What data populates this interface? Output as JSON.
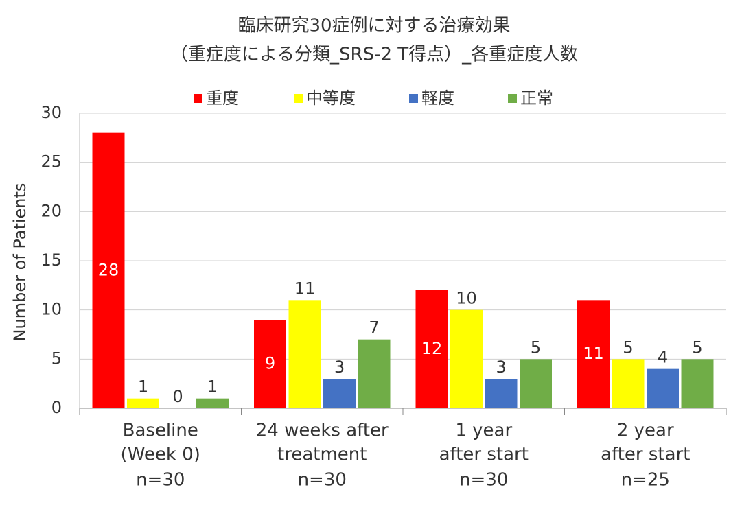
{
  "chart_data": {
    "type": "bar",
    "title": [
      "臨床研究30症例に対する治療効果",
      "（重症度による分類_SRS-2 T得点）_各重症度人数"
    ],
    "y_label": "Number of Patients",
    "categories": [
      [
        "Baseline",
        "(Week 0)",
        "n=30"
      ],
      [
        "24 weeks after",
        "treatment",
        "n=30"
      ],
      [
        "1 year",
        "after start",
        "n=30"
      ],
      [
        "2 year",
        "after start",
        "n=25"
      ]
    ],
    "series": [
      {
        "name": "重度",
        "color": "#ff0000",
        "values": [
          28,
          9,
          12,
          11
        ],
        "label_position": "center",
        "label_color": "#ffffff"
      },
      {
        "name": "中等度",
        "color": "#ffff00",
        "values": [
          1,
          11,
          10,
          5
        ],
        "label_position": "outside_end",
        "label_color": "#333333"
      },
      {
        "name": "軽度",
        "color": "#4472c4",
        "values": [
          0,
          3,
          3,
          4
        ],
        "label_position": "outside_end",
        "label_color": "#333333"
      },
      {
        "name": "正常",
        "color": "#70ad47",
        "values": [
          1,
          7,
          5,
          5
        ],
        "label_position": "outside_end",
        "label_color": "#333333"
      }
    ],
    "ylim": [
      0,
      30
    ],
    "yticks": [
      0,
      5,
      10,
      15,
      20,
      25,
      30
    ],
    "grid": true,
    "legend": "top"
  }
}
